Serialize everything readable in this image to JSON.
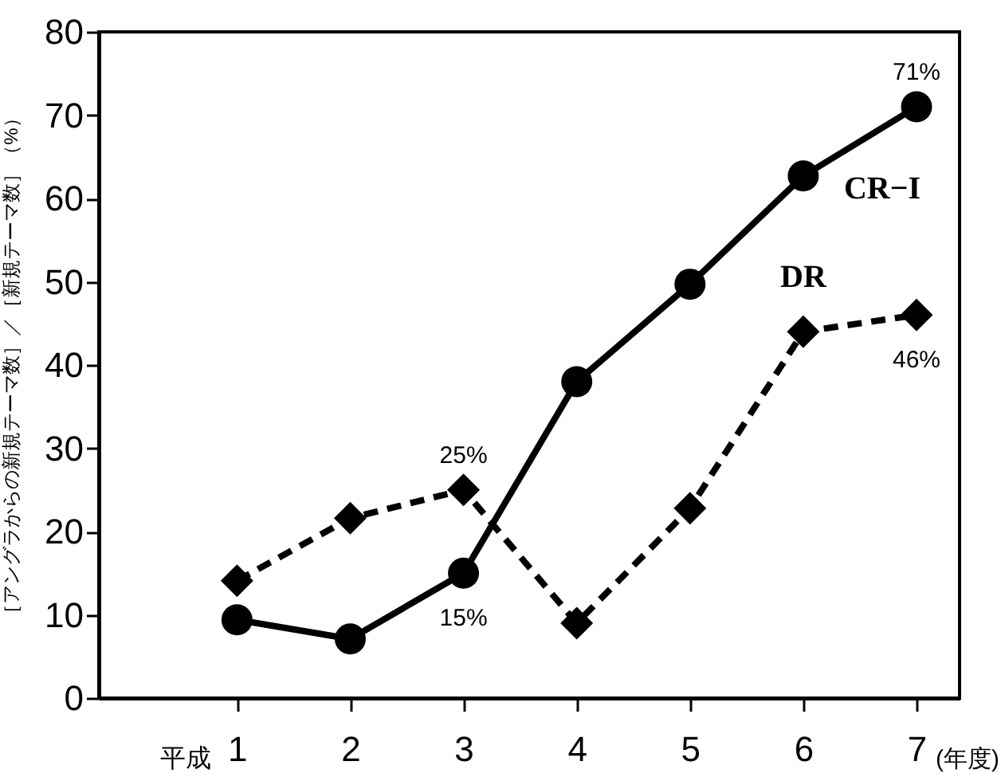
{
  "chart_data": {
    "type": "line",
    "ylabel": "［アングラからの新規テーマ数］／［新規テーマ数］（%）",
    "categories": [
      "1",
      "2",
      "3",
      "4",
      "5",
      "6",
      "7"
    ],
    "ylim": [
      0,
      80
    ],
    "yticks": [
      0,
      10,
      20,
      30,
      40,
      50,
      60,
      70,
      80
    ],
    "grid": false,
    "annotations": [
      "平成",
      "(年度)"
    ],
    "series": [
      {
        "name": "CR−I",
        "color": "#000000",
        "marker": "circle",
        "line_style": "solid",
        "values": [
          9.4,
          7.1,
          15,
          38,
          49.7,
          62.7,
          71
        ],
        "value_labels": [
          null,
          null,
          "15%",
          null,
          null,
          null,
          "71%"
        ]
      },
      {
        "name": "DR",
        "color": "#000000",
        "marker": "diamond",
        "line_style": "dashed",
        "values": [
          14.1,
          21.6,
          25,
          9,
          22.8,
          44,
          46
        ],
        "value_labels": [
          null,
          null,
          "25%",
          null,
          null,
          null,
          "46%"
        ]
      }
    ]
  }
}
